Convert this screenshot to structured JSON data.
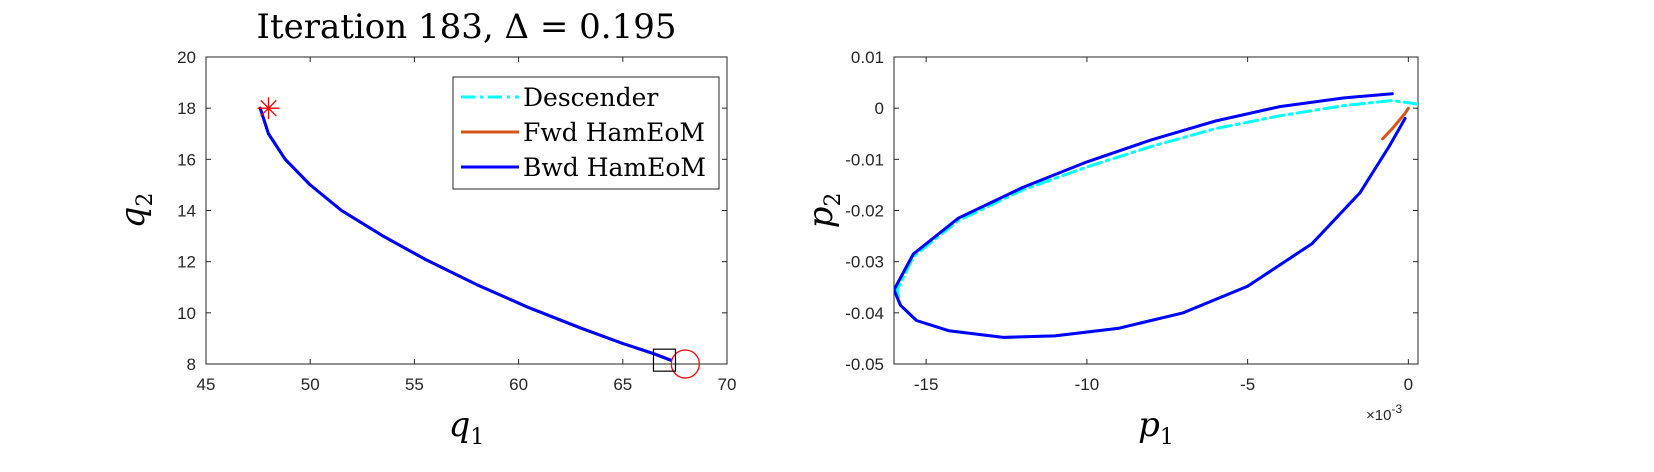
{
  "chart_data": [
    {
      "type": "line",
      "title": "Iteration 183, Δ = 0.195",
      "xlabel": "q",
      "xlabel_sub": "1",
      "ylabel": "q",
      "ylabel_sub": "2",
      "xlim": [
        45,
        70
      ],
      "ylim": [
        8,
        20
      ],
      "xticks": [
        45,
        50,
        55,
        60,
        65,
        70
      ],
      "yticks": [
        8,
        10,
        12,
        14,
        16,
        18,
        20
      ],
      "grid": false,
      "legend_position": "top-right",
      "series": [
        {
          "name": "Descender",
          "color": "#00ffff",
          "style": "dash-dot",
          "x": [
            47.6,
            48.0,
            48.8,
            50.0,
            51.5,
            53.5,
            55.5,
            58.0,
            60.5,
            63.0,
            65.0,
            66.5,
            67.3
          ],
          "y": [
            18.0,
            17.0,
            16.0,
            15.0,
            14.0,
            13.0,
            12.1,
            11.1,
            10.2,
            9.4,
            8.8,
            8.4,
            8.15
          ]
        },
        {
          "name": "Fwd HamEoM",
          "color": "#d95319",
          "style": "solid",
          "x": [
            47.6,
            48.0,
            48.8,
            50.0,
            51.5,
            53.5,
            55.5,
            58.0,
            60.5,
            63.0,
            65.0,
            66.5,
            67.3
          ],
          "y": [
            18.0,
            17.0,
            16.0,
            15.0,
            14.0,
            13.0,
            12.1,
            11.1,
            10.2,
            9.4,
            8.8,
            8.4,
            8.15
          ]
        },
        {
          "name": "Bwd HamEoM",
          "color": "#0000ff",
          "style": "solid",
          "x": [
            47.6,
            48.0,
            48.8,
            50.0,
            51.5,
            53.5,
            55.5,
            58.0,
            60.5,
            63.0,
            65.0,
            66.5,
            67.3
          ],
          "y": [
            18.0,
            17.0,
            16.0,
            15.0,
            14.0,
            13.0,
            12.1,
            11.1,
            10.2,
            9.4,
            8.8,
            8.4,
            8.15
          ]
        }
      ],
      "markers": [
        {
          "shape": "asterisk",
          "color": "#ff0000",
          "x": 48.0,
          "y": 18.0
        },
        {
          "shape": "circle",
          "color": "#ff0000",
          "x": 68.0,
          "y": 8.0
        },
        {
          "shape": "square",
          "color": "#000000",
          "x": 67.0,
          "y": 8.15
        }
      ]
    },
    {
      "type": "line",
      "title": "",
      "xlabel": "p",
      "xlabel_sub": "1",
      "ylabel": "p",
      "ylabel_sub": "2",
      "x_exponent_base": "×10",
      "x_exponent": "-3",
      "xlim": [
        -16,
        0.3
      ],
      "ylim": [
        -0.05,
        0.01
      ],
      "xticks": [
        -15,
        -10,
        -5,
        0
      ],
      "yticks": [
        -0.05,
        -0.04,
        -0.03,
        -0.02,
        -0.01,
        0,
        0.01
      ],
      "xtick_labels": [
        "-15",
        "-10",
        "-5",
        "0"
      ],
      "ytick_labels": [
        "-0.05",
        "-0.04",
        "-0.03",
        "-0.02",
        "-0.01",
        "0",
        "0.01"
      ],
      "grid": false,
      "series": [
        {
          "name": "Descender",
          "color": "#00ffff",
          "style": "dash-dot",
          "x": [
            0.3,
            -0.5,
            -2,
            -4,
            -6,
            -8,
            -10,
            -12,
            -14,
            -15.4,
            -15.9,
            -15.8,
            -15.3,
            -14.3,
            -12.6,
            -11,
            -9,
            -7,
            -5,
            -3,
            -1.5,
            -0.6,
            -0.1
          ],
          "y": [
            0.0008,
            0.0015,
            0.0005,
            -0.0015,
            -0.004,
            -0.0075,
            -0.0115,
            -0.016,
            -0.022,
            -0.029,
            -0.0355,
            -0.0385,
            -0.0415,
            -0.0435,
            -0.0448,
            -0.0445,
            -0.043,
            -0.04,
            -0.0348,
            -0.0265,
            -0.0165,
            -0.0075,
            -0.002
          ]
        },
        {
          "name": "Fwd HamEoM",
          "color": "#d95319",
          "style": "solid",
          "x": [
            0.0,
            -0.1,
            -0.3,
            -0.5,
            -0.8
          ],
          "y": [
            0.0,
            -0.001,
            -0.0025,
            -0.004,
            -0.006
          ]
        },
        {
          "name": "Bwd HamEoM",
          "color": "#0000ff",
          "style": "solid",
          "x": [
            -0.5,
            -2,
            -4,
            -6,
            -8,
            -10,
            -12,
            -14,
            -15.4,
            -16.0,
            -15.8,
            -15.3,
            -14.3,
            -12.6,
            -11,
            -9,
            -7,
            -5,
            -3,
            -1.5,
            -0.6,
            -0.1
          ],
          "y": [
            0.0028,
            0.002,
            0.0003,
            -0.0025,
            -0.0062,
            -0.0105,
            -0.0155,
            -0.0215,
            -0.0285,
            -0.0355,
            -0.0385,
            -0.0415,
            -0.0435,
            -0.0448,
            -0.0445,
            -0.043,
            -0.04,
            -0.0348,
            -0.0265,
            -0.0165,
            -0.0075,
            -0.002
          ]
        }
      ]
    }
  ]
}
